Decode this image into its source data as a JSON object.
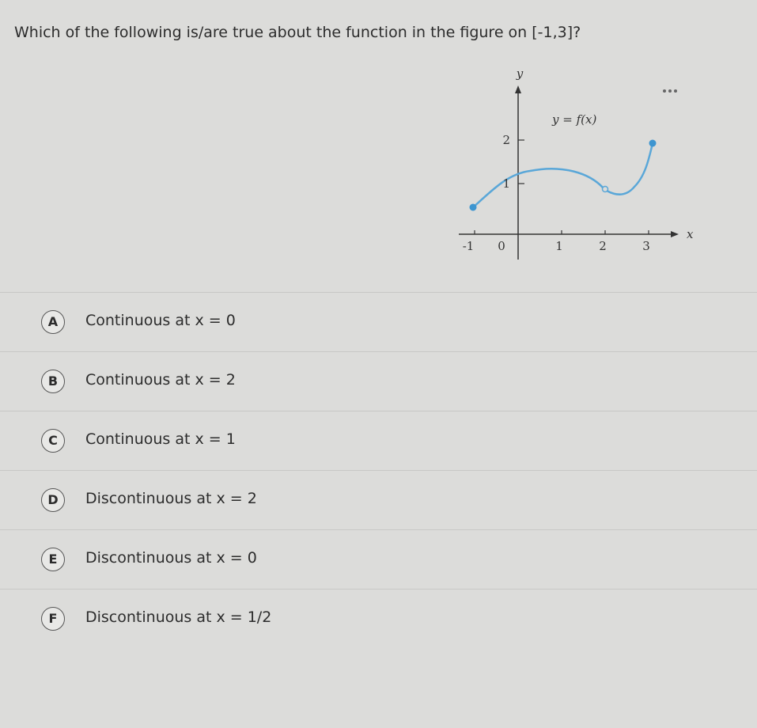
{
  "question": "Which of the following is/are true about the function in the figure on [-1,3]?",
  "figure": {
    "y_axis_label": "y",
    "x_axis_label": "x",
    "function_label": "y = f(x)",
    "y_ticks": [
      "2",
      "1"
    ],
    "x_ticks": [
      "-1",
      "0",
      "1",
      "2",
      "3"
    ]
  },
  "options": [
    {
      "letter": "A",
      "text": "Continuous at x = 0"
    },
    {
      "letter": "B",
      "text": "Continuous at x = 2"
    },
    {
      "letter": "C",
      "text": "Continuous at x = 1"
    },
    {
      "letter": "D",
      "text": "Discontinuous at x = 2"
    },
    {
      "letter": "E",
      "text": "Discontinuous at x = 0"
    },
    {
      "letter": "F",
      "text": "Discontinuous at x = 1/2"
    }
  ]
}
